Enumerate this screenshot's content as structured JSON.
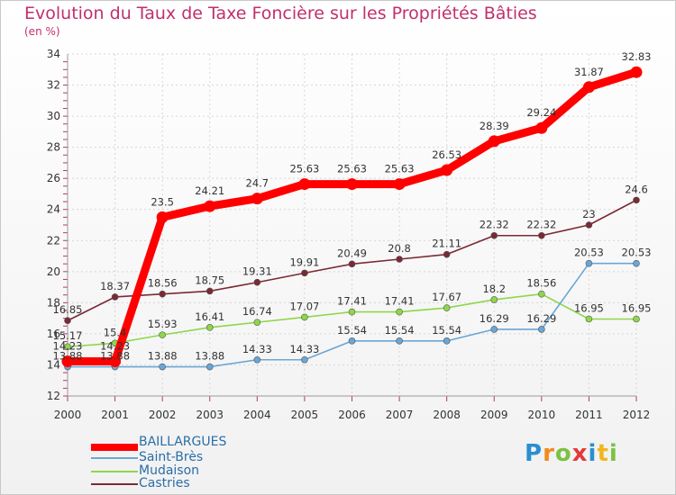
{
  "title": "Evolution du Taux de Taxe Foncière sur les Propriétés Bâties",
  "unit": "(en %)",
  "logo": "Proxiti",
  "chart_data": {
    "type": "line",
    "x": [
      2000,
      2001,
      2002,
      2003,
      2004,
      2005,
      2006,
      2007,
      2008,
      2009,
      2010,
      2011,
      2012
    ],
    "ylim": [
      12,
      34
    ],
    "yticks": [
      12,
      14,
      16,
      18,
      20,
      22,
      24,
      26,
      28,
      30,
      32,
      34
    ],
    "grid": true,
    "legend": "bottom-left",
    "series": [
      {
        "name": "Castries",
        "color": "#7a2a35",
        "values": [
          16.85,
          18.37,
          18.56,
          18.75,
          19.31,
          19.91,
          20.49,
          20.8,
          21.11,
          22.32,
          22.32,
          23,
          24.6
        ],
        "labels": [
          "16.85",
          "18.37",
          "18.56",
          "18.75",
          "19.31",
          "19.91",
          "20.49",
          "20.8",
          "21.11",
          "22.32",
          "22.32",
          "23",
          "24.6"
        ]
      },
      {
        "name": "Mudaison",
        "color": "#8ed64a",
        "values": [
          15.17,
          15.4,
          15.93,
          16.41,
          16.74,
          17.07,
          17.41,
          17.41,
          17.67,
          18.2,
          18.56,
          16.95,
          16.95
        ],
        "labels": [
          "15.17",
          "15.4",
          "15.93",
          "16.41",
          "16.74",
          "17.07",
          "17.41",
          "17.41",
          "17.67",
          "18.2",
          "18.56",
          "16.95",
          "16.95"
        ]
      },
      {
        "name": "Saint-Brès",
        "color": "#6aa6d6",
        "values": [
          13.88,
          13.88,
          13.88,
          13.88,
          14.33,
          14.33,
          15.54,
          15.54,
          15.54,
          16.29,
          16.29,
          20.53,
          20.53
        ],
        "labels": [
          "13.88",
          "13.88",
          "13.88",
          "13.88",
          "14.33",
          "14.33",
          "15.54",
          "15.54",
          "15.54",
          "16.29",
          "16.29",
          "20.53",
          "20.53"
        ]
      },
      {
        "name": "BAILLARGUES",
        "color": "#ff0000",
        "values": [
          14.23,
          14.23,
          23.5,
          24.21,
          24.7,
          25.63,
          25.63,
          25.63,
          26.53,
          28.39,
          29.24,
          31.87,
          32.83
        ],
        "labels": [
          "14.23",
          "14.23",
          "23.5",
          "24.21",
          "24.7",
          "25.63",
          "25.63",
          "25.63",
          "26.53",
          "28.39",
          "29.24",
          "31.87",
          "32.83"
        ]
      }
    ]
  },
  "legend": [
    {
      "name": "BAILLARGUES",
      "color": "#ff0000"
    },
    {
      "name": "Saint-Brès",
      "color": "#6aa6d6"
    },
    {
      "name": "Mudaison",
      "color": "#8ed64a"
    },
    {
      "name": "Castries",
      "color": "#7a2a35"
    }
  ]
}
